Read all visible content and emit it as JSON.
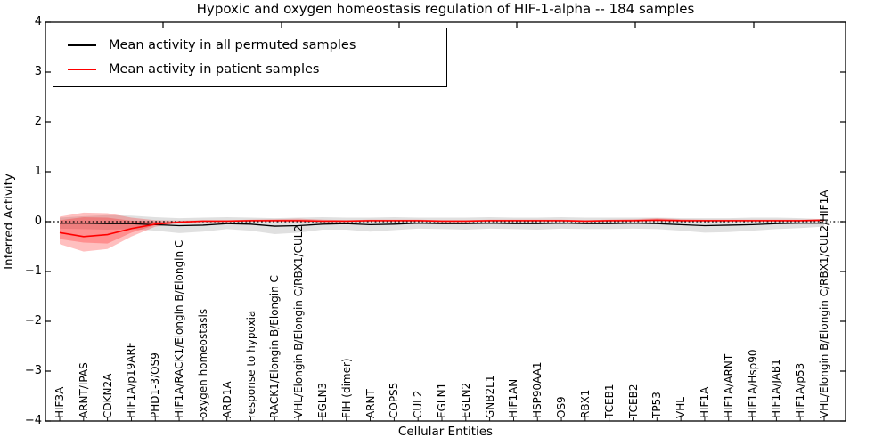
{
  "figure": {
    "title": "Hypoxic and oxygen homeostasis regulation of HIF-1-alpha -- 184 samples",
    "xlabel": "Cellular Entities",
    "ylabel": "Inferred Activity"
  },
  "legend": {
    "position": "upper left",
    "entries": [
      {
        "label": "Mean activity in all permuted samples",
        "color": "#000000"
      },
      {
        "label": "Mean activity in patient samples",
        "color": "#ff0000"
      }
    ]
  },
  "chart_data": {
    "type": "line",
    "title": "Hypoxic and oxygen homeostasis regulation of HIF-1-alpha -- 184 samples",
    "xlabel": "Cellular Entities",
    "ylabel": "Inferred Activity",
    "ylim": [
      -4,
      4
    ],
    "ytick_values": [
      4,
      3,
      2,
      1,
      0,
      -1,
      -2,
      -3,
      -4
    ],
    "ytick_labels": [
      "4",
      "3",
      "2",
      "1",
      "0",
      "−1",
      "−2",
      "−3",
      "−4"
    ],
    "grid": false,
    "zero_reference_line": {
      "style": "dotted",
      "color": "#000000",
      "y": 0
    },
    "categories": [
      "HIF3A",
      "ARNT/IPAS",
      "CDKN2A",
      "HIF1A/p19ARF",
      "PHD1-3/OS9",
      "HIF1A/RACK1/Elongin B/Elongin C",
      "oxygen homeostasis",
      "ARD1A",
      "response to hypoxia",
      "RACK1/Elongin B/Elongin C",
      "VHL/Elongin B/Elongin C/RBX1/CUL2",
      "EGLN3",
      "FIH (dimer)",
      "ARNT",
      "COPS5",
      "CUL2",
      "EGLN1",
      "EGLN2",
      "GNB2L1",
      "HIF1AN",
      "HSP90AA1",
      "OS9",
      "RBX1",
      "TCEB1",
      "TCEB2",
      "TP53",
      "VHL",
      "HIF1A",
      "HIF1A/ARNT",
      "HIF1A/Hsp90",
      "HIF1A/JAB1",
      "HIF1A/p53",
      "VHL/Elongin B/Elongin C/RBX1/CUL2/HIF1A"
    ],
    "series": [
      {
        "name": "Mean activity in all permuted samples",
        "color": "#000000",
        "band_color": "rgba(0,0,0,0.12)",
        "values": [
          -0.03,
          -0.03,
          -0.04,
          -0.04,
          -0.06,
          -0.08,
          -0.07,
          -0.04,
          -0.05,
          -0.09,
          -0.08,
          -0.05,
          -0.04,
          -0.06,
          -0.05,
          -0.03,
          -0.04,
          -0.04,
          -0.03,
          -0.04,
          -0.04,
          -0.03,
          -0.04,
          -0.04,
          -0.03,
          -0.04,
          -0.06,
          -0.08,
          -0.07,
          -0.06,
          -0.04,
          -0.03,
          -0.03
        ],
        "band_top": [
          0.08,
          0.11,
          0.13,
          0.12,
          0.09,
          0.07,
          0.08,
          0.09,
          0.08,
          0.07,
          0.08,
          0.09,
          0.08,
          0.08,
          0.09,
          0.08,
          0.08,
          0.08,
          0.09,
          0.08,
          0.08,
          0.09,
          0.08,
          0.08,
          0.08,
          0.08,
          0.07,
          0.07,
          0.07,
          0.08,
          0.08,
          0.07,
          0.05
        ],
        "band_bottom": [
          -0.14,
          -0.15,
          -0.16,
          -0.15,
          -0.18,
          -0.23,
          -0.2,
          -0.15,
          -0.18,
          -0.25,
          -0.22,
          -0.16,
          -0.16,
          -0.2,
          -0.17,
          -0.14,
          -0.15,
          -0.16,
          -0.14,
          -0.15,
          -0.16,
          -0.14,
          -0.15,
          -0.15,
          -0.14,
          -0.15,
          -0.18,
          -0.22,
          -0.21,
          -0.18,
          -0.15,
          -0.13,
          -0.1
        ]
      },
      {
        "name": "Mean activity in patient samples",
        "color": "#ff0000",
        "band_color": "rgba(255,0,0,0.25)",
        "values": [
          -0.22,
          -0.3,
          -0.26,
          -0.14,
          -0.05,
          -0.01,
          0.01,
          0.01,
          0.02,
          0.02,
          0.02,
          0.01,
          0.01,
          0.02,
          0.02,
          0.02,
          0.01,
          0.01,
          0.02,
          0.02,
          0.02,
          0.02,
          0.01,
          0.02,
          0.02,
          0.03,
          0.02,
          0.02,
          0.02,
          0.02,
          0.02,
          0.02,
          0.03
        ],
        "band_top": [
          0.1,
          0.18,
          0.17,
          0.08,
          0.03,
          0.02,
          0.03,
          0.03,
          0.04,
          0.05,
          0.06,
          0.04,
          0.03,
          0.04,
          0.04,
          0.04,
          0.03,
          0.03,
          0.04,
          0.04,
          0.04,
          0.04,
          0.03,
          0.04,
          0.05,
          0.07,
          0.05,
          0.04,
          0.04,
          0.04,
          0.04,
          0.04,
          0.05
        ],
        "band_bottom": [
          -0.45,
          -0.6,
          -0.55,
          -0.3,
          -0.1,
          -0.03,
          -0.01,
          -0.01,
          0.0,
          0.0,
          -0.01,
          -0.01,
          -0.01,
          0.0,
          0.0,
          0.0,
          -0.01,
          -0.01,
          0.0,
          0.0,
          0.0,
          0.0,
          -0.01,
          0.0,
          0.0,
          0.01,
          0.0,
          0.0,
          0.0,
          0.0,
          0.0,
          0.0,
          0.01
        ],
        "inner_band_top": [
          0.03,
          0.09,
          0.08,
          0.02,
          0.0,
          -0.005
        ],
        "inner_band_bottom": [
          -0.35,
          -0.42,
          -0.44,
          -0.22,
          -0.07,
          -0.02
        ]
      }
    ]
  }
}
